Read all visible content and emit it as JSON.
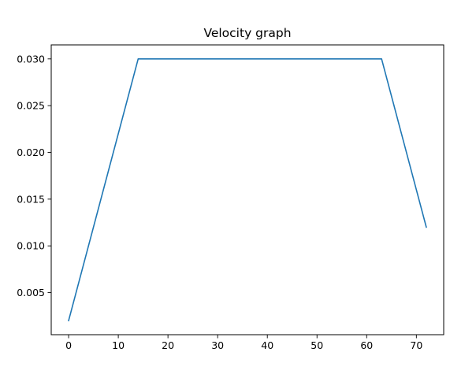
{
  "chart_data": {
    "type": "line",
    "title": "Velocity graph",
    "xlabel": "",
    "ylabel": "",
    "xlim": [
      -3.5,
      75.5
    ],
    "ylim": [
      0.0005,
      0.0315
    ],
    "xticks": [
      0,
      10,
      20,
      30,
      40,
      50,
      60,
      70
    ],
    "yticks": [
      0.005,
      0.01,
      0.015,
      0.02,
      0.025,
      0.03
    ],
    "xtick_labels": [
      "0",
      "10",
      "20",
      "30",
      "40",
      "50",
      "60",
      "70"
    ],
    "ytick_labels": [
      "0.005",
      "0.010",
      "0.015",
      "0.020",
      "0.025",
      "0.030"
    ],
    "grid": false,
    "legend": "none",
    "series": [
      {
        "color": "#1f77b4",
        "x": [
          0,
          14,
          63,
          72
        ],
        "y": [
          0.002,
          0.03,
          0.03,
          0.012
        ]
      }
    ]
  }
}
